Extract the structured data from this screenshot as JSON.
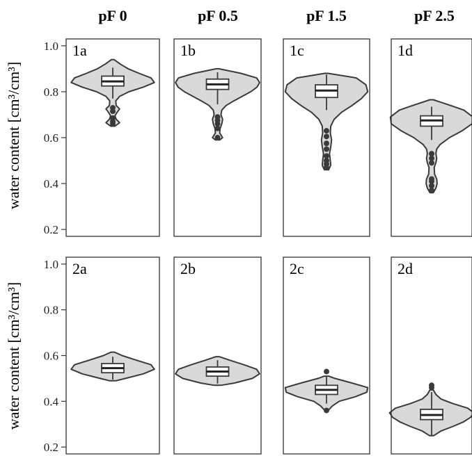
{
  "chart_data": {
    "type": "violin",
    "columns": [
      "pF 0",
      "pF 0.5",
      "pF 1.5",
      "pF 2.5"
    ],
    "ylabel": "water content [cm³/cm³]",
    "ylim": [
      0.17,
      1.03
    ],
    "yticks": [
      "0.2",
      "0.4",
      "0.6",
      "0.8",
      "1.0"
    ],
    "rows": [
      {
        "panels": [
          {
            "label": "1a",
            "box": {
              "q1": 0.825,
              "median": 0.845,
              "q3": 0.868,
              "whisker_low": 0.77,
              "whisker_high": 0.905
            },
            "violin_max": 0.94,
            "outliers": [
              0.73,
              0.715,
              0.685,
              0.67,
              0.66
            ],
            "density": [
              [
                0.65,
                0.05
              ],
              [
                0.665,
                0.16
              ],
              [
                0.68,
                0.08
              ],
              [
                0.695,
                0.05
              ],
              [
                0.71,
                0.1
              ],
              [
                0.725,
                0.16
              ],
              [
                0.74,
                0.08
              ],
              [
                0.76,
                0.07
              ],
              [
                0.78,
                0.16
              ],
              [
                0.8,
                0.38
              ],
              [
                0.82,
                0.72
              ],
              [
                0.84,
                0.98
              ],
              [
                0.86,
                0.9
              ],
              [
                0.88,
                0.62
              ],
              [
                0.9,
                0.36
              ],
              [
                0.92,
                0.18
              ],
              [
                0.94,
                0.03
              ]
            ]
          },
          {
            "label": "1b",
            "box": {
              "q1": 0.81,
              "median": 0.832,
              "q3": 0.855,
              "whisker_low": 0.745,
              "whisker_high": 0.885
            },
            "violin_max": 0.9,
            "outliers": [
              0.69,
              0.675,
              0.66,
              0.64,
              0.6
            ],
            "density": [
              [
                0.59,
                0.05
              ],
              [
                0.6,
                0.12
              ],
              [
                0.62,
                0.05
              ],
              [
                0.64,
                0.06
              ],
              [
                0.66,
                0.1
              ],
              [
                0.68,
                0.12
              ],
              [
                0.7,
                0.08
              ],
              [
                0.72,
                0.1
              ],
              [
                0.74,
                0.2
              ],
              [
                0.76,
                0.38
              ],
              [
                0.78,
                0.58
              ],
              [
                0.8,
                0.78
              ],
              [
                0.82,
                0.93
              ],
              [
                0.84,
                0.99
              ],
              [
                0.86,
                0.92
              ],
              [
                0.88,
                0.55
              ],
              [
                0.9,
                0.03
              ]
            ]
          },
          {
            "label": "1c",
            "box": {
              "q1": 0.775,
              "median": 0.805,
              "q3": 0.83,
              "whisker_low": 0.72,
              "whisker_high": 0.875
            },
            "violin_max": 0.88,
            "outliers": [
              0.63,
              0.605,
              0.575,
              0.55,
              0.52,
              0.5,
              0.485,
              0.47
            ],
            "density": [
              [
                0.46,
                0.05
              ],
              [
                0.48,
                0.1
              ],
              [
                0.5,
                0.09
              ],
              [
                0.53,
                0.07
              ],
              [
                0.56,
                0.1
              ],
              [
                0.59,
                0.12
              ],
              [
                0.62,
                0.09
              ],
              [
                0.65,
                0.1
              ],
              [
                0.68,
                0.18
              ],
              [
                0.71,
                0.35
              ],
              [
                0.74,
                0.6
              ],
              [
                0.77,
                0.82
              ],
              [
                0.8,
                0.97
              ],
              [
                0.83,
                0.93
              ],
              [
                0.86,
                0.7
              ],
              [
                0.88,
                0.04
              ]
            ]
          },
          {
            "label": "1d",
            "box": {
              "q1": 0.65,
              "median": 0.675,
              "q3": 0.695,
              "whisker_low": 0.59,
              "whisker_high": 0.735
            },
            "violin_max": 0.765,
            "outliers": [
              0.53,
              0.51,
              0.49,
              0.42,
              0.41,
              0.39,
              0.37
            ],
            "density": [
              [
                0.36,
                0.04
              ],
              [
                0.38,
                0.1
              ],
              [
                0.4,
                0.13
              ],
              [
                0.42,
                0.12
              ],
              [
                0.44,
                0.07
              ],
              [
                0.47,
                0.06
              ],
              [
                0.49,
                0.1
              ],
              [
                0.51,
                0.12
              ],
              [
                0.53,
                0.1
              ],
              [
                0.55,
                0.12
              ],
              [
                0.57,
                0.2
              ],
              [
                0.6,
                0.42
              ],
              [
                0.63,
                0.72
              ],
              [
                0.66,
                0.95
              ],
              [
                0.69,
                0.97
              ],
              [
                0.72,
                0.76
              ],
              [
                0.74,
                0.45
              ],
              [
                0.765,
                0.04
              ]
            ]
          }
        ]
      },
      {
        "panels": [
          {
            "label": "2a",
            "box": {
              "q1": 0.525,
              "median": 0.545,
              "q3": 0.565,
              "whisker_low": 0.495,
              "whisker_high": 0.595
            },
            "violin_max": 0.615,
            "outliers": [],
            "density": [
              [
                0.49,
                0.08
              ],
              [
                0.5,
                0.3
              ],
              [
                0.52,
                0.72
              ],
              [
                0.54,
                0.98
              ],
              [
                0.56,
                0.9
              ],
              [
                0.58,
                0.55
              ],
              [
                0.6,
                0.22
              ],
              [
                0.615,
                0.04
              ]
            ]
          },
          {
            "label": "2b",
            "box": {
              "q1": 0.51,
              "median": 0.53,
              "q3": 0.55,
              "whisker_low": 0.478,
              "whisker_high": 0.58
            },
            "violin_max": 0.595,
            "outliers": [],
            "density": [
              [
                0.47,
                0.08
              ],
              [
                0.48,
                0.4
              ],
              [
                0.5,
                0.82
              ],
              [
                0.52,
                0.99
              ],
              [
                0.54,
                0.92
              ],
              [
                0.56,
                0.62
              ],
              [
                0.58,
                0.28
              ],
              [
                0.595,
                0.04
              ]
            ]
          },
          {
            "label": "2c",
            "box": {
              "q1": 0.43,
              "median": 0.45,
              "q3": 0.47,
              "whisker_low": 0.39,
              "whisker_high": 0.51
            },
            "violin_max": 0.51,
            "outliers": [
              0.53,
              0.36
            ],
            "density": [
              [
                0.36,
                0.04
              ],
              [
                0.38,
                0.14
              ],
              [
                0.4,
                0.3
              ],
              [
                0.42,
                0.68
              ],
              [
                0.44,
                0.95
              ],
              [
                0.46,
                0.97
              ],
              [
                0.48,
                0.6
              ],
              [
                0.5,
                0.2
              ],
              [
                0.51,
                0.05
              ]
            ]
          },
          {
            "label": "2d",
            "box": {
              "q1": 0.32,
              "median": 0.34,
              "q3": 0.365,
              "whisker_low": 0.25,
              "whisker_high": 0.44
            },
            "violin_max": 0.45,
            "outliers": [
              0.47,
              0.46
            ],
            "density": [
              [
                0.25,
                0.05
              ],
              [
                0.27,
                0.22
              ],
              [
                0.29,
                0.5
              ],
              [
                0.31,
                0.75
              ],
              [
                0.33,
                0.92
              ],
              [
                0.35,
                0.99
              ],
              [
                0.37,
                0.85
              ],
              [
                0.39,
                0.5
              ],
              [
                0.41,
                0.22
              ],
              [
                0.43,
                0.1
              ],
              [
                0.45,
                0.04
              ]
            ]
          }
        ]
      }
    ]
  }
}
